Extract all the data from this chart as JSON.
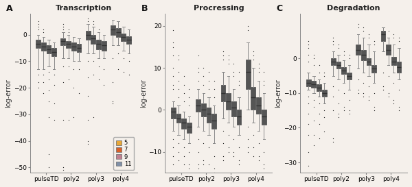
{
  "panel_titles": [
    "Transcription",
    "Procressing",
    "Degradation"
  ],
  "panel_labels": [
    "A",
    "B",
    "C"
  ],
  "x_labels": [
    "pulseTD",
    "poly2",
    "poly3",
    "poly4"
  ],
  "legend_labels": [
    "5",
    "7",
    "9",
    "11"
  ],
  "colors": [
    "#E8A838",
    "#D95F27",
    "#C08090",
    "#8090A8"
  ],
  "ylabel": "log~error",
  "bg_color": "#F5F0EB",
  "panels": {
    "Transcription": {
      "ylim": [
        -52,
        8
      ],
      "yticks": [
        0,
        -10,
        -20,
        -30,
        -40,
        -50
      ],
      "groups": {
        "pulseTD": {
          "5": {
            "whislo": -13,
            "q1": -5,
            "med": -3.5,
            "q3": -2,
            "whishi": 0,
            "fliers_low": [
              -15,
              -18,
              -20
            ],
            "fliers_high": [
              2,
              3,
              4,
              5
            ]
          },
          "7": {
            "whislo": -13,
            "q1": -6,
            "med": -4.5,
            "q3": -3,
            "whishi": -1,
            "fliers_low": [
              -15,
              -18,
              -22
            ],
            "fliers_high": [
              1,
              2
            ]
          },
          "9": {
            "whislo": -12,
            "q1": -7,
            "med": -5.5,
            "q3": -4,
            "whishi": -2,
            "fliers_low": [
              -14,
              -17,
              -21,
              -25,
              -31,
              -45,
              -50
            ],
            "fliers_high": []
          },
          "11": {
            "whislo": -13,
            "q1": -8,
            "med": -6.5,
            "q3": -5,
            "whishi": -3,
            "fliers_low": [
              -15,
              -19,
              -26,
              -32
            ],
            "fliers_high": []
          }
        },
        "poly2": {
          "5": {
            "whislo": -9,
            "q1": -4,
            "med": -2.5,
            "q3": -1.5,
            "whishi": 1,
            "fliers_low": [
              -12,
              -18,
              -32,
              -50,
              -51
            ],
            "fliers_high": [
              2,
              3,
              4
            ]
          },
          "7": {
            "whislo": -9,
            "q1": -5,
            "med": -3.5,
            "q3": -2.5,
            "whishi": 0,
            "fliers_low": [
              -12,
              -17,
              -32
            ],
            "fliers_high": [
              1,
              2
            ]
          },
          "9": {
            "whislo": -10,
            "q1": -6,
            "med": -4.5,
            "q3": -3,
            "whishi": -1,
            "fliers_low": [
              -13,
              -20,
              -31
            ],
            "fliers_high": []
          },
          "11": {
            "whislo": -10,
            "q1": -6.5,
            "med": -5,
            "q3": -3.5,
            "whishi": -1.5,
            "fliers_low": [
              -13,
              -22
            ],
            "fliers_high": []
          }
        },
        "poly3": {
          "5": {
            "whislo": -7,
            "q1": -2,
            "med": 0,
            "q3": 1.5,
            "whishi": 4,
            "fliers_low": [
              -10,
              -16,
              -23,
              -32,
              -40,
              -41
            ],
            "fliers_high": [
              5,
              6
            ]
          },
          "7": {
            "whislo": -7,
            "q1": -3.5,
            "med": -1.5,
            "q3": 0,
            "whishi": 3,
            "fliers_low": [
              -10,
              -15,
              -31
            ],
            "fliers_high": [
              4,
              5
            ]
          },
          "9": {
            "whislo": -9,
            "q1": -5.5,
            "med": -3.5,
            "q3": -2,
            "whishi": 1,
            "fliers_low": [
              -12,
              -17
            ],
            "fliers_high": [
              2
            ]
          },
          "11": {
            "whislo": -9,
            "q1": -6,
            "med": -4,
            "q3": -2.5,
            "whishi": 0,
            "fliers_low": [
              -13,
              -19
            ],
            "fliers_high": []
          }
        },
        "poly4": {
          "5": {
            "whislo": -4,
            "q1": 0,
            "med": 2,
            "q3": 3.5,
            "whishi": 5.5,
            "fliers_low": [
              -9,
              -18,
              -25,
              -26
            ],
            "fliers_high": []
          },
          "7": {
            "whislo": -4,
            "q1": -1,
            "med": 1,
            "q3": 2.5,
            "whishi": 5,
            "fliers_low": [
              -7,
              -13
            ],
            "fliers_high": []
          },
          "9": {
            "whislo": -6,
            "q1": -2.5,
            "med": -1,
            "q3": 0.5,
            "whishi": 3,
            "fliers_low": [
              -9,
              -14
            ],
            "fliers_high": []
          },
          "11": {
            "whislo": -7,
            "q1": -3.5,
            "med": -2,
            "q3": -0.5,
            "whishi": 2,
            "fliers_low": [
              -10,
              -15
            ],
            "fliers_high": []
          }
        }
      }
    },
    "Procressing": {
      "ylim": [
        -15,
        23
      ],
      "yticks": [
        -10,
        0,
        10,
        20
      ],
      "groups": {
        "pulseTD": {
          "5": {
            "whislo": -5,
            "q1": -2,
            "med": -0.5,
            "q3": 0.5,
            "whishi": 2,
            "fliers_low": [
              -7,
              -9,
              -11,
              -13
            ],
            "fliers_high": [
              5,
              6,
              8,
              10,
              13,
              15,
              16,
              19
            ]
          },
          "7": {
            "whislo": -6,
            "q1": -3,
            "med": -2,
            "q3": -1,
            "whishi": 1,
            "fliers_low": [
              -8,
              -10,
              -12
            ],
            "fliers_high": [
              3,
              5,
              7,
              9,
              12,
              13
            ]
          },
          "9": {
            "whislo": -7,
            "q1": -4.5,
            "med": -3,
            "q3": -2,
            "whishi": -0.5,
            "fliers_low": [
              -9,
              -11,
              -13
            ],
            "fliers_high": [
              2,
              4,
              6,
              8
            ]
          },
          "11": {
            "whislo": -8,
            "q1": -5.5,
            "med": -4,
            "q3": -3,
            "whishi": -1.5,
            "fliers_low": [
              -10,
              -13,
              -14
            ],
            "fliers_high": [
              1,
              3,
              5
            ]
          }
        },
        "poly2": {
          "5": {
            "whislo": -4,
            "q1": -0.5,
            "med": 1,
            "q3": 2.5,
            "whishi": 5,
            "fliers_low": [
              -7,
              -10,
              -13,
              -14
            ],
            "fliers_high": [
              7,
              9,
              10,
              13
            ]
          },
          "7": {
            "whislo": -5,
            "q1": -1.5,
            "med": 0,
            "q3": 1.5,
            "whishi": 4,
            "fliers_low": [
              -8,
              -12,
              -13
            ],
            "fliers_high": [
              6,
              8,
              10
            ]
          },
          "9": {
            "whislo": -6,
            "q1": -3,
            "med": -1,
            "q3": 0.5,
            "whishi": 3,
            "fliers_low": [
              -9,
              -13
            ],
            "fliers_high": [
              5,
              7,
              9
            ]
          },
          "11": {
            "whislo": -8,
            "q1": -4.5,
            "med": -2.5,
            "q3": -1,
            "whishi": 1,
            "fliers_low": [
              -11,
              -14,
              -15
            ],
            "fliers_high": [
              3,
              5,
              7
            ]
          }
        },
        "poly3": {
          "5": {
            "whislo": -2,
            "q1": 2,
            "med": 4,
            "q3": 6,
            "whishi": 9,
            "fliers_low": [
              -5,
              -8,
              -11,
              -12
            ],
            "fliers_high": [
              12,
              13,
              14
            ]
          },
          "7": {
            "whislo": -3,
            "q1": 0,
            "med": 2,
            "q3": 4,
            "whishi": 8,
            "fliers_low": [
              -6,
              -9,
              -10
            ],
            "fliers_high": [
              11,
              12,
              13
            ]
          },
          "9": {
            "whislo": -4,
            "q1": -1.5,
            "med": 0.5,
            "q3": 2,
            "whishi": 5,
            "fliers_low": [
              -7,
              -10,
              -11
            ],
            "fliers_high": [
              8,
              9,
              11
            ]
          },
          "11": {
            "whislo": -6,
            "q1": -3.5,
            "med": -1.5,
            "q3": 0,
            "whishi": 3,
            "fliers_low": [
              -9,
              -12,
              -13
            ],
            "fliers_high": [
              6,
              7,
              9
            ]
          }
        },
        "poly4": {
          "5": {
            "whislo": 0,
            "q1": 5,
            "med": 9,
            "q3": 12,
            "whishi": 16,
            "fliers_low": [
              -4,
              -7,
              -9,
              -10
            ],
            "fliers_high": [
              19,
              20
            ]
          },
          "7": {
            "whislo": -3,
            "q1": 0,
            "med": 3,
            "q3": 5.5,
            "whishi": 10,
            "fliers_low": [
              -6,
              -9,
              -11
            ],
            "fliers_high": [
              12,
              13,
              14
            ]
          },
          "9": {
            "whislo": -5,
            "q1": -1,
            "med": 1,
            "q3": 3,
            "whishi": 7,
            "fliers_low": [
              -8,
              -11,
              -12
            ],
            "fliers_high": [
              9,
              10,
              11
            ]
          },
          "11": {
            "whislo": -7,
            "q1": -3.5,
            "med": -1.5,
            "q3": 0,
            "whishi": 4,
            "fliers_low": [
              -10,
              -13,
              -14
            ],
            "fliers_high": [
              6,
              7,
              9
            ]
          }
        }
      }
    },
    "Degradation": {
      "ylim": [
        -33,
        13
      ],
      "yticks": [
        0,
        -10,
        -20,
        -30
      ],
      "groups": {
        "pulseTD": {
          "5": {
            "whislo": -9,
            "q1": -8,
            "med": -7,
            "q3": -6,
            "whishi": -4,
            "fliers_low": [
              -11,
              -13,
              -16,
              -19,
              -22,
              -27,
              -31
            ],
            "fliers_high": [
              -1,
              1,
              3,
              4,
              5
            ]
          },
          "7": {
            "whislo": -10,
            "q1": -8.5,
            "med": -7.5,
            "q3": -6.5,
            "whishi": -5,
            "fliers_low": [
              -12,
              -14,
              -18,
              -22,
              -25
            ],
            "fliers_high": [
              -2,
              0,
              1
            ]
          },
          "9": {
            "whislo": -11,
            "q1": -9.5,
            "med": -8.5,
            "q3": -7.5,
            "whishi": -6,
            "fliers_low": [
              -13,
              -16,
              -19,
              -23
            ],
            "fliers_high": [
              -4,
              -2
            ]
          },
          "11": {
            "whislo": -13,
            "q1": -11,
            "med": -10,
            "q3": -9,
            "whishi": -7,
            "fliers_low": [
              -15,
              -17,
              -21
            ],
            "fliers_high": [
              -5,
              -4
            ]
          }
        },
        "poly2": {
          "5": {
            "whislo": -5,
            "q1": -2,
            "med": -1,
            "q3": 0,
            "whishi": 2,
            "fliers_low": [
              -8,
              -11,
              -15,
              -23,
              -24
            ],
            "fliers_high": [
              4,
              5,
              6
            ]
          },
          "7": {
            "whislo": -6,
            "q1": -3,
            "med": -2,
            "q3": -1,
            "whishi": 1,
            "fliers_low": [
              -9,
              -13,
              -16,
              -17
            ],
            "fliers_high": [
              3,
              4
            ]
          },
          "9": {
            "whislo": -7,
            "q1": -4.5,
            "med": -3.5,
            "q3": -2.5,
            "whishi": -0.5,
            "fliers_low": [
              -10,
              -14,
              -15
            ],
            "fliers_high": [
              1,
              2
            ]
          },
          "11": {
            "whislo": -9,
            "q1": -6,
            "med": -5,
            "q3": -4,
            "whishi": -2,
            "fliers_low": [
              -12,
              -15,
              -16
            ],
            "fliers_high": [
              0,
              1
            ]
          }
        },
        "poly3": {
          "5": {
            "whislo": -3,
            "q1": 1,
            "med": 2.5,
            "q3": 4,
            "whishi": 7,
            "fliers_low": [
              -6,
              -9,
              -10
            ],
            "fliers_high": [
              9,
              10
            ]
          },
          "7": {
            "whislo": -4,
            "q1": -0.5,
            "med": 1,
            "q3": 2.5,
            "whishi": 6,
            "fliers_low": [
              -7,
              -10,
              -11
            ],
            "fliers_high": [
              8,
              9
            ]
          },
          "9": {
            "whislo": -5,
            "q1": -2,
            "med": -1,
            "q3": 0,
            "whishi": 4,
            "fliers_low": [
              -8,
              -11,
              -12
            ],
            "fliers_high": [
              6,
              7
            ]
          },
          "11": {
            "whislo": -7,
            "q1": -4,
            "med": -3,
            "q3": -2,
            "whishi": 2,
            "fliers_low": [
              -10,
              -14,
              -15
            ],
            "fliers_high": [
              4,
              5
            ]
          }
        },
        "poly4": {
          "5": {
            "whislo": 2,
            "q1": 5,
            "med": 7,
            "q3": 8,
            "whishi": 9,
            "fliers_low": [
              -4,
              -8,
              -9
            ],
            "fliers_high": []
          },
          "7": {
            "whislo": -2,
            "q1": 1,
            "med": 2.5,
            "q3": 4,
            "whishi": 6,
            "fliers_low": [
              -5,
              -10,
              -11
            ],
            "fliers_high": [
              8
            ]
          },
          "9": {
            "whislo": -4,
            "q1": -2,
            "med": -1,
            "q3": 0.5,
            "whishi": 4,
            "fliers_low": [
              -7,
              -12,
              -13
            ],
            "fliers_high": [
              6,
              7
            ]
          },
          "11": {
            "whislo": -6,
            "q1": -4,
            "med": -2.5,
            "q3": -1,
            "whishi": 3,
            "fliers_low": [
              -9,
              -14,
              -15
            ],
            "fliers_high": [
              5,
              6
            ]
          }
        }
      }
    }
  }
}
